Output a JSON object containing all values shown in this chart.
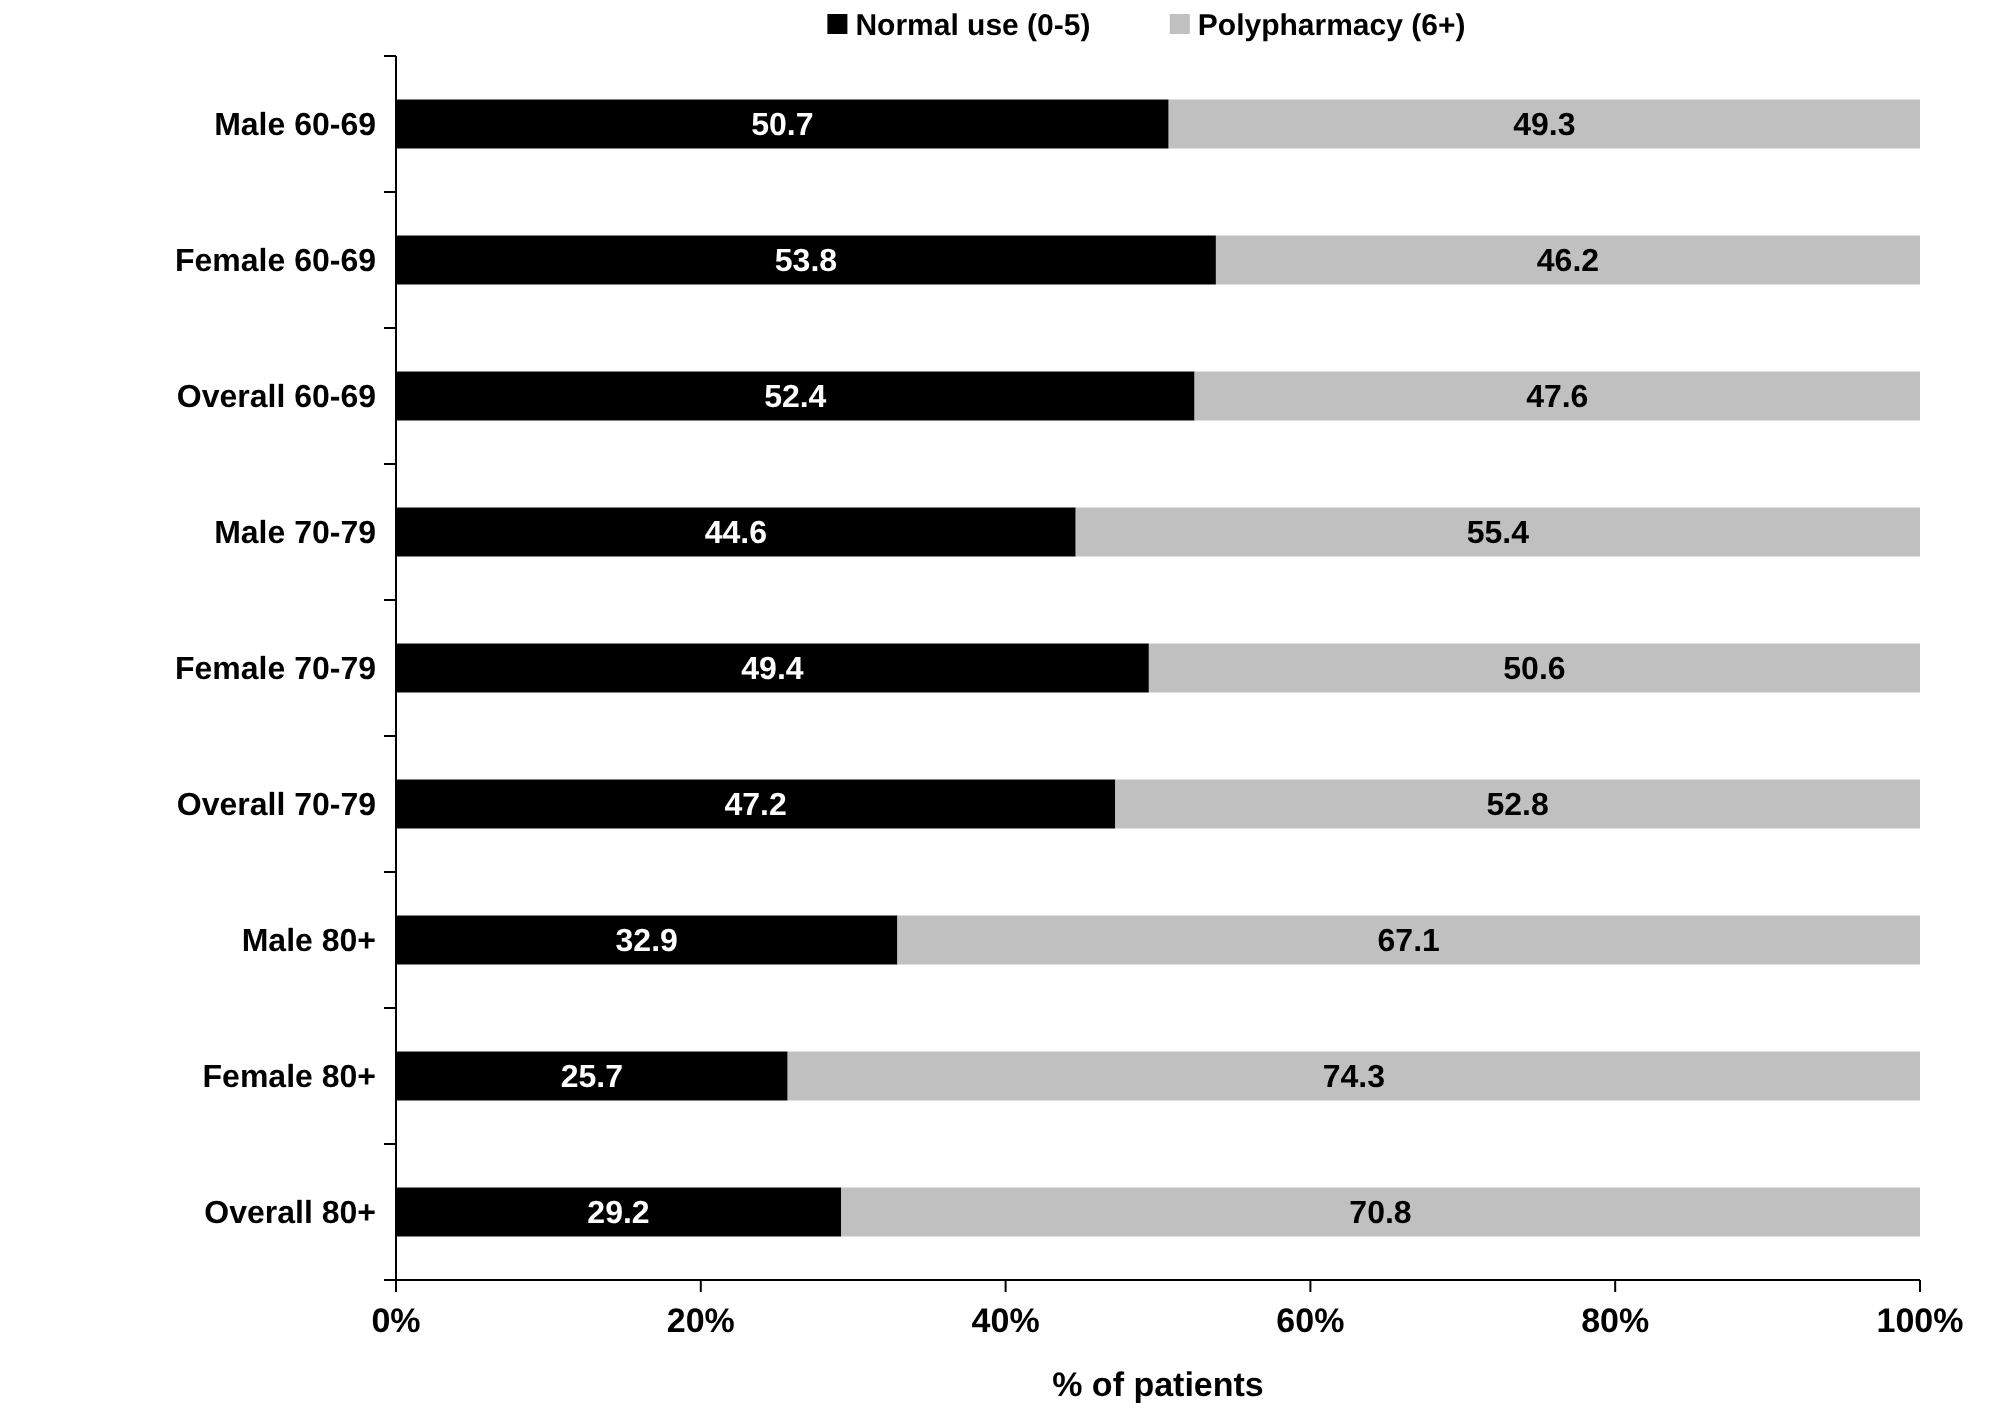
{
  "chart_data": {
    "type": "bar",
    "orientation": "horizontal",
    "stacked": true,
    "xlabel": "% of patients",
    "categories": [
      "Male 60-69",
      "Female 60-69",
      "Overall 60-69",
      "Male 70-79",
      "Female 70-79",
      "Overall 70-79",
      "Male 80+",
      "Female 80+",
      "Overall 80+"
    ],
    "series": [
      {
        "name": "Normal use (0-5)",
        "color": "#000000",
        "values": [
          50.7,
          53.8,
          52.4,
          44.6,
          49.4,
          47.2,
          32.9,
          25.7,
          29.2
        ]
      },
      {
        "name": "Polypharmacy (6+)",
        "color": "#c0c0c0",
        "values": [
          49.3,
          46.2,
          47.6,
          55.4,
          50.6,
          52.8,
          67.1,
          74.3,
          70.8
        ]
      }
    ],
    "xlim": [
      0,
      100
    ],
    "xticks": [
      {
        "value": 0,
        "label": "0%"
      },
      {
        "value": 20,
        "label": "20%"
      },
      {
        "value": 40,
        "label": "40%"
      },
      {
        "value": 60,
        "label": "60%"
      },
      {
        "value": 80,
        "label": "80%"
      },
      {
        "value": 100,
        "label": "100%"
      }
    ],
    "data_labels": true,
    "legend": "top",
    "grid": false
  }
}
